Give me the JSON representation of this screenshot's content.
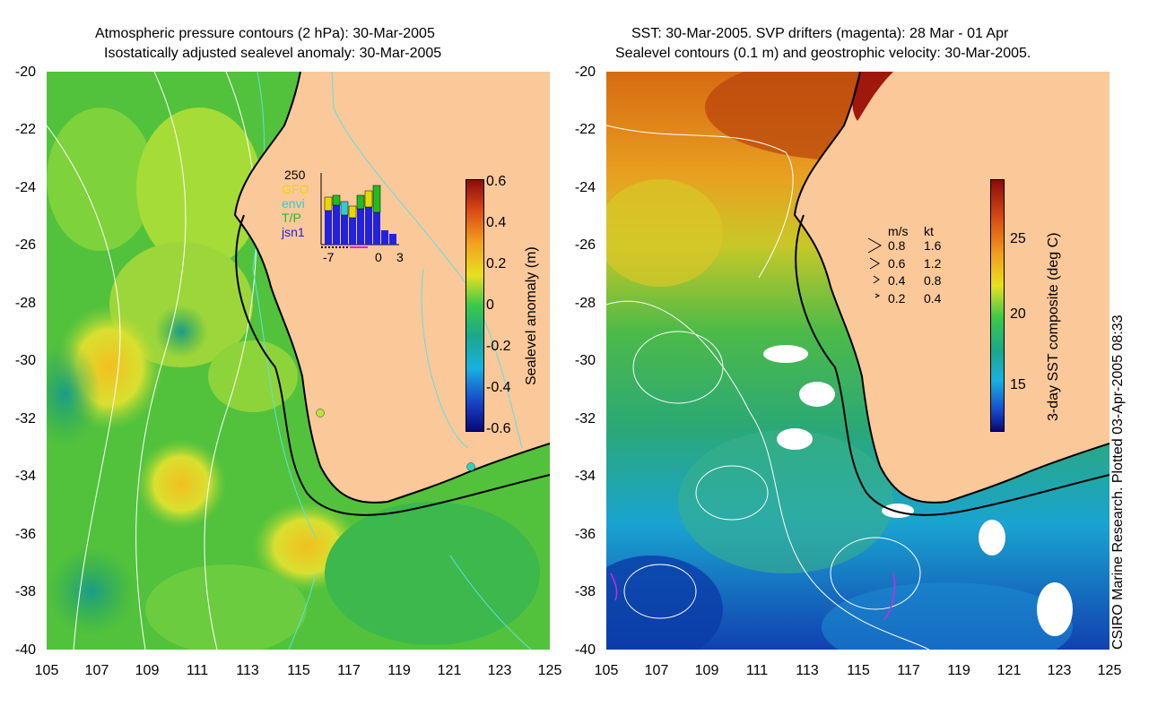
{
  "left_panel": {
    "title_line1": "Atmospheric pressure contours (2 hPa): 30-Mar-2005",
    "title_line2": "Isostatically adjusted sealevel anomaly: 30-Mar-2005",
    "colorbar_label": "Sealevel anomaly (m)",
    "colorbar_ticks": [
      "0.6",
      "0.4",
      "0.2",
      "0",
      "-0.2",
      "-0.4",
      "-0.6"
    ],
    "inset": {
      "y_top_label": "250",
      "legend": [
        {
          "label": "GFO",
          "color": "#e8d800"
        },
        {
          "label": "envi",
          "color": "#33cccc"
        },
        {
          "label": "T/P",
          "color": "#22bb22"
        },
        {
          "label": "jsn1",
          "color": "#2222dd"
        }
      ],
      "x_ticks": [
        "-7",
        "0",
        "3"
      ]
    }
  },
  "right_panel": {
    "title_line1": "SST: 30-Mar-2005. SVP drifters (magenta): 28 Mar - 01 Apr",
    "title_line2": "Sealevel contours (0.1 m) and geostrophic velocity: 30-Mar-2005.",
    "colorbar_label": "3-day SST composite (deg C)",
    "colorbar_ticks": [
      "25",
      "20",
      "15"
    ],
    "velocity_legend": {
      "header_ms": "m/s",
      "header_kt": "kt",
      "rows": [
        {
          "ms": "0.8",
          "kt": "1.6"
        },
        {
          "ms": "0.6",
          "kt": "1.2"
        },
        {
          "ms": "0.4",
          "kt": "0.8"
        },
        {
          "ms": "0.2",
          "kt": "0.4"
        }
      ]
    }
  },
  "y_ticks": [
    "-20",
    "-22",
    "-24",
    "-26",
    "-28",
    "-30",
    "-32",
    "-34",
    "-36",
    "-38",
    "-40"
  ],
  "x_ticks": [
    "105",
    "107",
    "109",
    "111",
    "113",
    "115",
    "117",
    "119",
    "121",
    "123",
    "125"
  ],
  "credit": "CSIRO Marine Research. Plotted 03-Apr-2005 08:33",
  "colors": {
    "land": "#fbc89a",
    "ocean_green": "#3cc84a",
    "coast": "#000000"
  }
}
